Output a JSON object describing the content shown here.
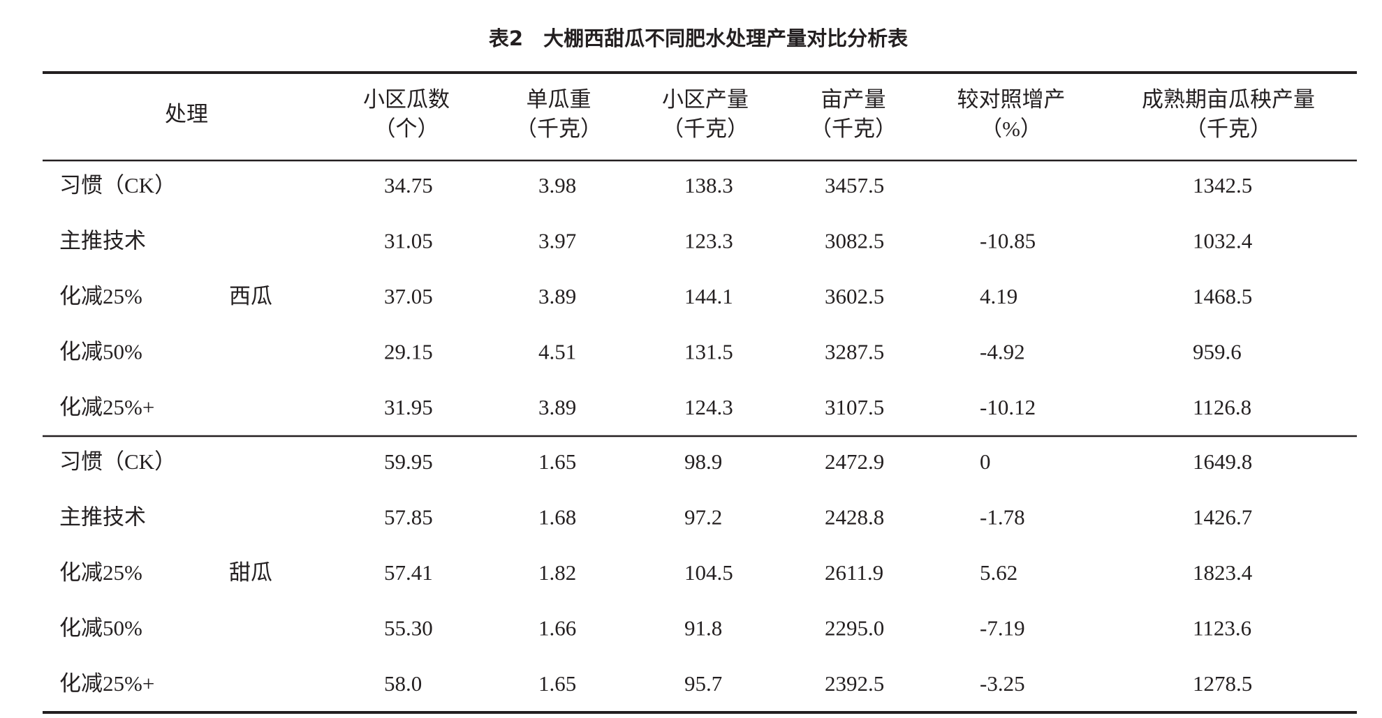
{
  "header": {
    "title": "表2　大棚西甜瓜不同肥水处理产量对比分析表"
  },
  "table": {
    "columns": [
      [
        "处理"
      ],
      [
        "小区瓜数",
        "（个）"
      ],
      [
        "单瓜重",
        "（千克）"
      ],
      [
        "小区产量",
        "（千克）"
      ],
      [
        "亩产量",
        "（千克）"
      ],
      [
        "较对照增产",
        "（%）"
      ],
      [
        "成熟期亩瓜秧产量",
        "（千克）"
      ]
    ],
    "groups": [
      {
        "name": "西瓜",
        "rows": [
          [
            "习惯（CK）",
            "34.75",
            "3.98",
            "138.3",
            "3457.5",
            null,
            "1342.5"
          ],
          [
            "主推技术",
            "31.05",
            "3.97",
            "123.3",
            "3082.5",
            "-10.85",
            "1032.4"
          ],
          [
            "化减25%",
            "37.05",
            "3.89",
            "144.1",
            "3602.5",
            "4.19",
            "1468.5"
          ],
          [
            "化减50%",
            "29.15",
            "4.51",
            "131.5",
            "3287.5",
            "-4.92",
            "959.6"
          ],
          [
            "化减25%+",
            "31.95",
            "3.89",
            "124.3",
            "3107.5",
            "-10.12",
            "1126.8"
          ]
        ]
      },
      {
        "name": "甜瓜",
        "rows": [
          [
            "习惯（CK）",
            "59.95",
            "1.65",
            "98.9",
            "2472.9",
            "0",
            "1649.8"
          ],
          [
            "主推技术",
            "57.85",
            "1.68",
            "97.2",
            "2428.8",
            "-1.78",
            "1426.7"
          ],
          [
            "化减25%",
            "57.41",
            "1.82",
            "104.5",
            "2611.9",
            "5.62",
            "1823.4"
          ],
          [
            "化减50%",
            "55.30",
            "1.66",
            "91.8",
            "2295.0",
            "-7.19",
            "1123.6"
          ],
          [
            "化减25%+",
            "58.0",
            "1.65",
            "95.7",
            "2392.5",
            "-3.25",
            "1278.5"
          ]
        ]
      }
    ]
  }
}
